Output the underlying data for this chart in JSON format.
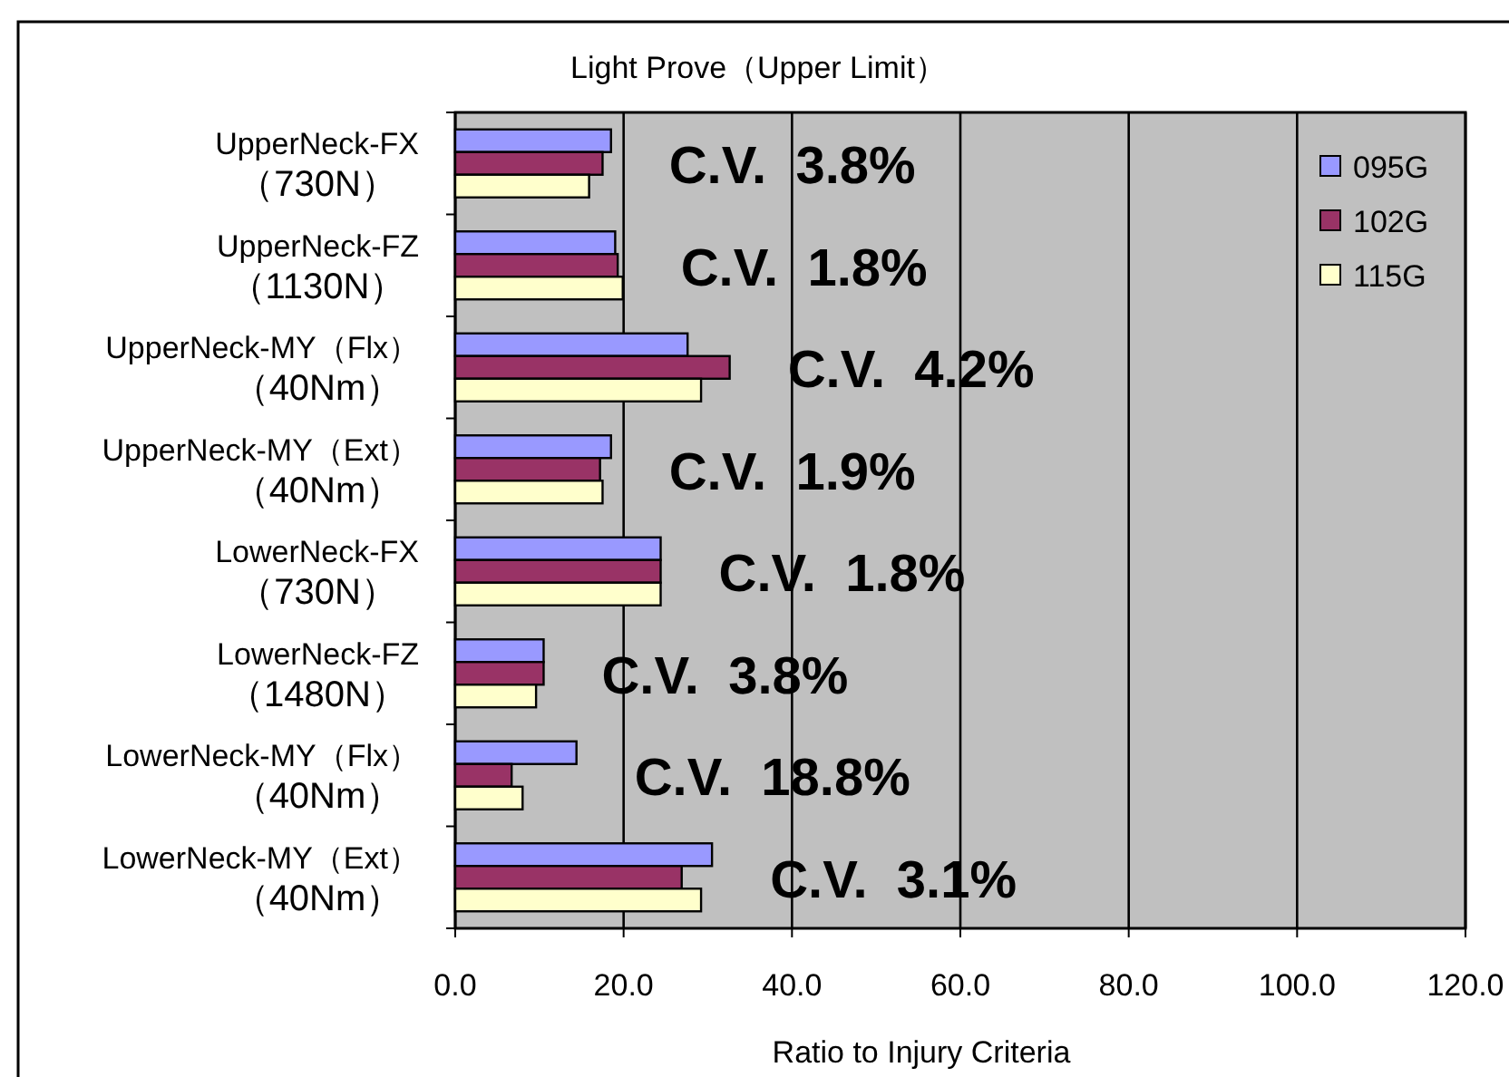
{
  "chart_data": {
    "type": "bar",
    "orientation": "horizontal",
    "title": "Light Prove（Upper Limit）",
    "xlabel": "Ratio to Injury Criteria",
    "categories": [
      "UpperNeck-FX（730N）",
      "UpperNeck-FZ（1130N）",
      "UpperNeck-MY（Flx）（40Nm）",
      "UpperNeck-MY（Ext）（40Nm）",
      "LowerNeck-FX（730N）",
      "LowerNeck-FZ（1480N）",
      "LowerNeck-MY（Flx）（40Nm）",
      "LowerNeck-MY（Ext）（40Nm）"
    ],
    "series": [
      {
        "name": "095G",
        "color": "#9999ff",
        "values": [
          18.5,
          19.0,
          27.6,
          18.5,
          24.4,
          10.5,
          14.4,
          30.5
        ]
      },
      {
        "name": "102G",
        "color": "#993366",
        "values": [
          17.5,
          19.3,
          32.6,
          17.2,
          24.4,
          10.5,
          6.7,
          26.9
        ]
      },
      {
        "name": "115G",
        "color": "#ffffcc",
        "values": [
          15.9,
          19.9,
          29.2,
          17.5,
          24.4,
          9.6,
          8.0,
          29.2
        ]
      }
    ],
    "xlim": [
      0,
      120
    ],
    "xticks": [
      {
        "value": 0,
        "label": "0.0"
      },
      {
        "value": 20,
        "label": "20.0"
      },
      {
        "value": 40,
        "label": "40.0"
      },
      {
        "value": 60,
        "label": "60.0"
      },
      {
        "value": 80,
        "label": "80.0"
      },
      {
        "value": 100,
        "label": "100.0"
      },
      {
        "value": 120,
        "label": "120.0"
      }
    ],
    "grid": "x",
    "legend": "top right",
    "annotations": [
      "C.V.  3.8%",
      "C.V.  1.8%",
      "C.V.  4.2%",
      "C.V.  1.9%",
      "C.V.  1.8%",
      "C.V.  3.8%",
      "C.V.  18.8%",
      "C.V.  3.1%"
    ]
  }
}
